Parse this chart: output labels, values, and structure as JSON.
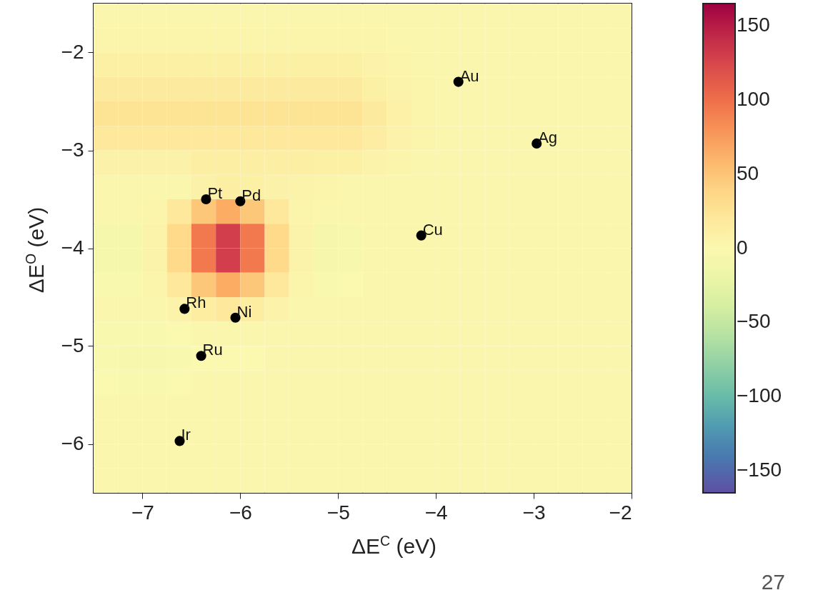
{
  "chart_data": {
    "type": "heatmap",
    "xlabel": "ΔE$^{C}$ (eV)",
    "ylabel": "ΔE$^{O}$ (eV)",
    "xlim": [
      -7.5,
      -2
    ],
    "xticks": [
      -7,
      -6,
      -5,
      -4,
      -3,
      -2
    ],
    "ylim": [
      -6.5,
      -1.5
    ],
    "yticks": [
      -6,
      -5,
      -4,
      -3,
      -2
    ],
    "clim": [
      -165,
      165
    ],
    "cticks": [
      -150,
      -100,
      -50,
      0,
      50,
      100,
      150
    ],
    "grid": false,
    "marker": "circle",
    "cells": [
      [
        3,
        3,
        3,
        3,
        3,
        3,
        3,
        3,
        3,
        3,
        3,
        3,
        3,
        3,
        3,
        3,
        3,
        3,
        3,
        3,
        3,
        3
      ],
      [
        5,
        5,
        5,
        5,
        5,
        5,
        5,
        5,
        5,
        5,
        5,
        4,
        3,
        3,
        3,
        3,
        3,
        3,
        3,
        3,
        3,
        3
      ],
      [
        10,
        10,
        10,
        10,
        10,
        10,
        10,
        10,
        10,
        10,
        10,
        7,
        5,
        3,
        3,
        3,
        3,
        3,
        3,
        3,
        3,
        3
      ],
      [
        16,
        16,
        16,
        16,
        16,
        16,
        16,
        16,
        16,
        16,
        16,
        10,
        6,
        4,
        3,
        3,
        3,
        3,
        3,
        3,
        3,
        3
      ],
      [
        25,
        25,
        25,
        25,
        25,
        25,
        25,
        25,
        25,
        25,
        25,
        16,
        9,
        5,
        3,
        3,
        3,
        3,
        3,
        3,
        3,
        3
      ],
      [
        20,
        20,
        20,
        20,
        20,
        20,
        20,
        20,
        20,
        20,
        20,
        13,
        7,
        4,
        3,
        3,
        3,
        3,
        3,
        3,
        3,
        3
      ],
      [
        8,
        8,
        8,
        8,
        12,
        12,
        12,
        12,
        12,
        10,
        10,
        6,
        4,
        3,
        3,
        3,
        3,
        3,
        3,
        3,
        3,
        3
      ],
      [
        3,
        3,
        3,
        3,
        8,
        12,
        10,
        8,
        6,
        5,
        3,
        3,
        3,
        3,
        3,
        3,
        3,
        3,
        3,
        3,
        3,
        3
      ],
      [
        3,
        3,
        5,
        19,
        48,
        66,
        48,
        19,
        5,
        3,
        3,
        3,
        3,
        3,
        3,
        3,
        3,
        3,
        3,
        3,
        3,
        3
      ],
      [
        -8,
        -8,
        6,
        35,
        94,
        131,
        94,
        35,
        6,
        -6,
        -4,
        3,
        3,
        3,
        3,
        3,
        3,
        3,
        3,
        3,
        3,
        3
      ],
      [
        -8,
        -8,
        6,
        35,
        94,
        131,
        94,
        35,
        6,
        -6,
        -4,
        3,
        3,
        3,
        3,
        3,
        3,
        3,
        3,
        3,
        3,
        3
      ],
      [
        -3,
        -3,
        5,
        19,
        48,
        66,
        48,
        19,
        5,
        -2,
        0,
        3,
        3,
        3,
        3,
        3,
        3,
        3,
        3,
        3,
        3,
        3
      ],
      [
        2,
        2,
        3,
        7,
        14,
        19,
        14,
        7,
        3,
        3,
        3,
        3,
        3,
        3,
        3,
        3,
        3,
        3,
        3,
        3,
        3,
        3
      ],
      [
        -2,
        -3,
        -3,
        0,
        2,
        3,
        3,
        3,
        3,
        3,
        3,
        3,
        3,
        3,
        3,
        3,
        3,
        3,
        3,
        3,
        3,
        3
      ],
      [
        -3,
        -4,
        -4,
        -3,
        0,
        0,
        0,
        3,
        3,
        3,
        3,
        3,
        3,
        3,
        3,
        3,
        3,
        3,
        3,
        3,
        3,
        3
      ],
      [
        0,
        -2,
        -2,
        0,
        3,
        3,
        3,
        3,
        3,
        3,
        3,
        3,
        3,
        3,
        3,
        3,
        3,
        3,
        3,
        3,
        3,
        3
      ],
      [
        3,
        3,
        3,
        3,
        3,
        3,
        3,
        3,
        3,
        3,
        3,
        3,
        3,
        3,
        3,
        3,
        3,
        3,
        3,
        3,
        3,
        3
      ],
      [
        3,
        3,
        3,
        3,
        3,
        3,
        3,
        3,
        3,
        3,
        3,
        3,
        3,
        3,
        3,
        3,
        3,
        3,
        3,
        3,
        3,
        3
      ],
      [
        3,
        3,
        3,
        3,
        3,
        3,
        3,
        3,
        3,
        3,
        3,
        3,
        3,
        3,
        3,
        3,
        3,
        3,
        3,
        3,
        3,
        3
      ],
      [
        3,
        3,
        3,
        3,
        3,
        3,
        3,
        3,
        3,
        3,
        3,
        3,
        3,
        3,
        3,
        3,
        3,
        3,
        3,
        3,
        3,
        3
      ]
    ],
    "series": [
      {
        "type": "scatter",
        "color": "#000000",
        "x": [
          -3.77,
          -2.97,
          -6.35,
          -6.0,
          -4.15,
          -6.57,
          -6.05,
          -6.4,
          -6.62
        ],
        "values": [
          -2.3,
          -2.93,
          -3.5,
          -3.52,
          -3.87,
          -4.62,
          -4.71,
          -5.1,
          -5.97
        ]
      }
    ],
    "annotations": [
      {
        "text": "Au",
        "x": -3.77,
        "y": -2.3
      },
      {
        "text": "Ag",
        "x": -2.97,
        "y": -2.93
      },
      {
        "text": "Pt",
        "x": -6.35,
        "y": -3.5
      },
      {
        "text": "Pd",
        "x": -6.0,
        "y": -3.52
      },
      {
        "text": "Cu",
        "x": -4.15,
        "y": -3.87
      },
      {
        "text": "Rh",
        "x": -6.57,
        "y": -4.62
      },
      {
        "text": "Ni",
        "x": -6.05,
        "y": -4.71
      },
      {
        "text": "Ru",
        "x": -6.4,
        "y": -5.1
      },
      {
        "text": "Ir",
        "x": -6.62,
        "y": -5.97
      },
      "27"
    ]
  }
}
